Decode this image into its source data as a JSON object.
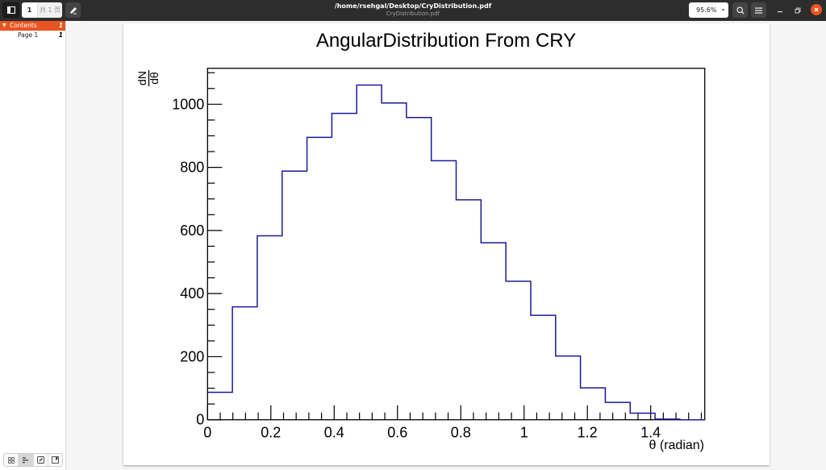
{
  "header": {
    "title": "/home/rsehgal/Desktop/CryDistribution.pdf",
    "subtitle": "CryDistribution.pdf",
    "current_page": "1",
    "total_pages": "共 1 页",
    "zoom_level": "95.6%",
    "zoom_arrow": "▾"
  },
  "sidebar": {
    "toc": [
      {
        "label": "Contents",
        "page": "1",
        "expanded": true,
        "selected": true
      },
      {
        "label": "Page 1",
        "page": "1"
      }
    ],
    "tabs": [
      "thumbnails",
      "outline",
      "annotations",
      "bookmarks"
    ],
    "active_tab": "outline"
  },
  "icons": {
    "sidebar_toggle": "sidebar-icon",
    "annotate": "pencil-icon",
    "search": "search-icon",
    "menu": "hamburger-icon",
    "minimize": "minimize-icon",
    "maximize": "maximize-icon",
    "close": "close-icon"
  },
  "colors": {
    "accent": "#E95420",
    "histogram_line": "#1a1a9a",
    "headerbar": "#2d2d2d"
  },
  "chart_data": {
    "type": "bar",
    "style": "step-histogram",
    "title": "AngularDistribution From CRY",
    "xlabel": "θ (radian)",
    "ylabel": "dN/dθ",
    "ylabel_numerator": "dN",
    "ylabel_denominator": "dθ",
    "bin_edges_start": 0,
    "bin_width": 0.07854,
    "n_bins": 20,
    "xlim": [
      0,
      1.5708
    ],
    "ylim": [
      0,
      1114
    ],
    "x_ticks": [
      "0",
      "0.2",
      "0.4",
      "0.6",
      "0.8",
      "1",
      "1.2",
      "1.4"
    ],
    "x_tick_values": [
      0,
      0.2,
      0.4,
      0.6,
      0.8,
      1.0,
      1.2,
      1.4
    ],
    "y_ticks": [
      "0",
      "200",
      "400",
      "600",
      "800",
      "1000"
    ],
    "y_tick_values": [
      0,
      200,
      400,
      600,
      800,
      1000
    ],
    "categories": [
      "0.039",
      "0.118",
      "0.196",
      "0.275",
      "0.353",
      "0.432",
      "0.511",
      "0.589",
      "0.668",
      "0.746",
      "0.825",
      "0.903",
      "0.982",
      "1.060",
      "1.139",
      "1.217",
      "1.296",
      "1.374",
      "1.453",
      "1.532"
    ],
    "values": [
      87,
      358,
      583,
      788,
      895,
      971,
      1061,
      1004,
      958,
      821,
      697,
      561,
      439,
      331,
      202,
      101,
      55,
      21,
      2,
      0
    ],
    "grid": false,
    "legend": null
  }
}
